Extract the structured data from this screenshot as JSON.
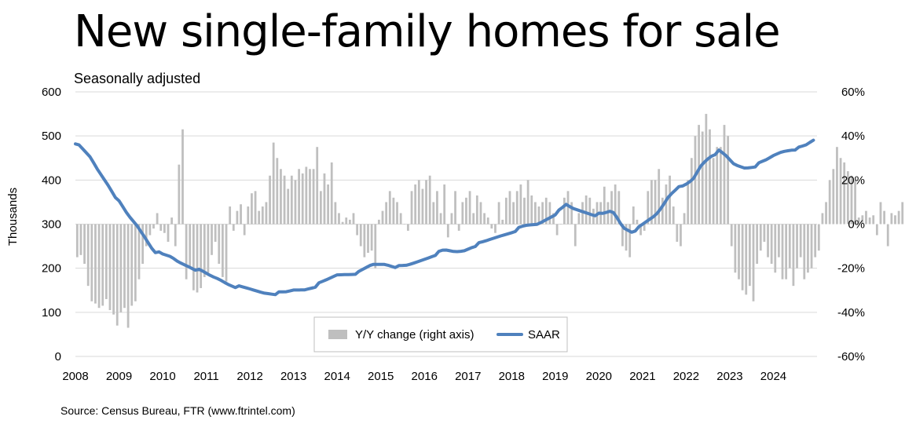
{
  "chart_data": {
    "type": "bar+line",
    "title": "New single-family homes for sale",
    "subtitle": "Seasonally adjusted",
    "source": "Source: Census Bureau, FTR (www.ftrintel.com)",
    "ylabel": "Thousands",
    "ylim_left": [
      0,
      600
    ],
    "ylim_right": [
      -60,
      60
    ],
    "left_ticks": [
      "0",
      "100",
      "200",
      "300",
      "400",
      "500",
      "600"
    ],
    "right_ticks": [
      "-60%",
      "-40%",
      "-20%",
      "0%",
      "20%",
      "40%",
      "60%"
    ],
    "x_ticks": [
      "2008",
      "2009",
      "2010",
      "2011",
      "2012",
      "2013",
      "2014",
      "2015",
      "2016",
      "2017",
      "2018",
      "2019",
      "2020",
      "2021",
      "2022",
      "2023",
      "2024"
    ],
    "legend": {
      "bar_label": "Y/Y change (right axis)",
      "line_label": "SAAR",
      "placement": "bottom-center"
    },
    "colors": {
      "bars": "#bfbfbf",
      "line": "#4f81bd",
      "grid": "#d9d9d9"
    },
    "grid": true,
    "saar_anchors": [
      [
        2008.0,
        485
      ],
      [
        2008.15,
        470
      ],
      [
        2008.35,
        450
      ],
      [
        2008.5,
        425
      ],
      [
        2008.75,
        390
      ],
      [
        2009.0,
        350
      ],
      [
        2009.2,
        320
      ],
      [
        2009.4,
        298
      ],
      [
        2009.6,
        270
      ],
      [
        2009.8,
        240
      ],
      [
        2010.0,
        230
      ],
      [
        2010.2,
        225
      ],
      [
        2010.35,
        215
      ],
      [
        2010.6,
        205
      ],
      [
        2010.9,
        192
      ],
      [
        2011.1,
        182
      ],
      [
        2011.3,
        175
      ],
      [
        2011.5,
        165
      ],
      [
        2011.7,
        158
      ],
      [
        2012.0,
        152
      ],
      [
        2012.3,
        145
      ],
      [
        2012.6,
        143
      ],
      [
        2012.85,
        145
      ],
      [
        2013.0,
        150
      ],
      [
        2013.25,
        152
      ],
      [
        2013.5,
        160
      ],
      [
        2013.75,
        172
      ],
      [
        2014.0,
        185
      ],
      [
        2014.3,
        188
      ],
      [
        2014.5,
        190
      ],
      [
        2014.8,
        208
      ],
      [
        2015.1,
        210
      ],
      [
        2015.4,
        203
      ],
      [
        2015.6,
        205
      ],
      [
        2015.9,
        217
      ],
      [
        2016.2,
        230
      ],
      [
        2016.45,
        240
      ],
      [
        2016.7,
        237
      ],
      [
        2016.9,
        240
      ],
      [
        2017.1,
        250
      ],
      [
        2017.4,
        260
      ],
      [
        2017.7,
        272
      ],
      [
        2018.0,
        283
      ],
      [
        2018.3,
        295
      ],
      [
        2018.6,
        300
      ],
      [
        2018.85,
        315
      ],
      [
        2019.1,
        330
      ],
      [
        2019.25,
        343
      ],
      [
        2019.4,
        335
      ],
      [
        2019.6,
        330
      ],
      [
        2019.9,
        322
      ],
      [
        2020.1,
        322
      ],
      [
        2020.3,
        330
      ],
      [
        2020.45,
        310
      ],
      [
        2020.55,
        293
      ],
      [
        2020.75,
        284
      ],
      [
        2020.9,
        290
      ],
      [
        2021.1,
        305
      ],
      [
        2021.3,
        320
      ],
      [
        2021.45,
        340
      ],
      [
        2021.6,
        365
      ],
      [
        2021.75,
        380
      ],
      [
        2021.95,
        385
      ],
      [
        2022.15,
        400
      ],
      [
        2022.35,
        435
      ],
      [
        2022.55,
        455
      ],
      [
        2022.75,
        465
      ],
      [
        2022.9,
        455
      ],
      [
        2023.1,
        435
      ],
      [
        2023.35,
        428
      ],
      [
        2023.6,
        433
      ],
      [
        2023.85,
        445
      ],
      [
        2024.0,
        455
      ],
      [
        2024.2,
        465
      ],
      [
        2024.4,
        470
      ],
      [
        2024.6,
        472
      ],
      [
        2024.75,
        478
      ],
      [
        2024.92,
        490
      ]
    ],
    "yoy_change_pct": [
      -15,
      -14,
      -18,
      -28,
      -35,
      -36,
      -38,
      -37,
      -34,
      -39,
      -41,
      -46,
      -40,
      -38,
      -47,
      -37,
      -35,
      -25,
      -18,
      -10,
      -5,
      -2,
      5,
      -3,
      -4,
      -8,
      3,
      -10,
      27,
      43,
      -25,
      -20,
      -30,
      -31,
      -29,
      -24,
      -22,
      -14,
      -8,
      -18,
      -24,
      -26,
      8,
      -3,
      6,
      9,
      -5,
      8,
      14,
      15,
      6,
      8,
      10,
      22,
      37,
      30,
      25,
      22,
      16,
      22,
      20,
      25,
      23,
      26,
      25,
      25,
      35,
      15,
      23,
      18,
      28,
      10,
      5,
      1,
      3,
      2,
      5,
      -5,
      -10,
      -15,
      -13,
      -12,
      -20,
      2,
      6,
      10,
      15,
      12,
      10,
      5,
      0,
      -3,
      15,
      18,
      20,
      16,
      20,
      22,
      10,
      15,
      5,
      18,
      -6,
      5,
      15,
      -3,
      10,
      12,
      15,
      5,
      13,
      10,
      5,
      3,
      -2,
      -4,
      10,
      2,
      12,
      15,
      10,
      15,
      18,
      12,
      20,
      13,
      10,
      8,
      10,
      12,
      10,
      5,
      -5,
      0,
      12,
      15,
      10,
      -10,
      5,
      10,
      13,
      12,
      7,
      10,
      10,
      17,
      10,
      15,
      18,
      15,
      -10,
      -12,
      -15,
      8,
      2,
      -5,
      -3,
      15,
      20,
      20,
      25,
      12,
      18,
      22,
      8,
      -8,
      -10,
      5,
      20,
      30,
      40,
      45,
      42,
      50,
      43,
      30,
      35,
      35,
      45,
      40,
      -10,
      -22,
      -25,
      -30,
      -32,
      -28,
      -35,
      -18,
      -12,
      -8,
      -15,
      -18,
      -22,
      -15,
      -25,
      -25,
      -20,
      -28,
      -20,
      -15,
      -25,
      -22,
      -20,
      -15,
      -12,
      5,
      10,
      20,
      25,
      35,
      30,
      28,
      24,
      22,
      20,
      3,
      4,
      6,
      3,
      4,
      -5,
      10,
      6,
      -10,
      5,
      4,
      6,
      10,
      8,
      -8,
      12,
      15,
      10,
      8
    ]
  }
}
